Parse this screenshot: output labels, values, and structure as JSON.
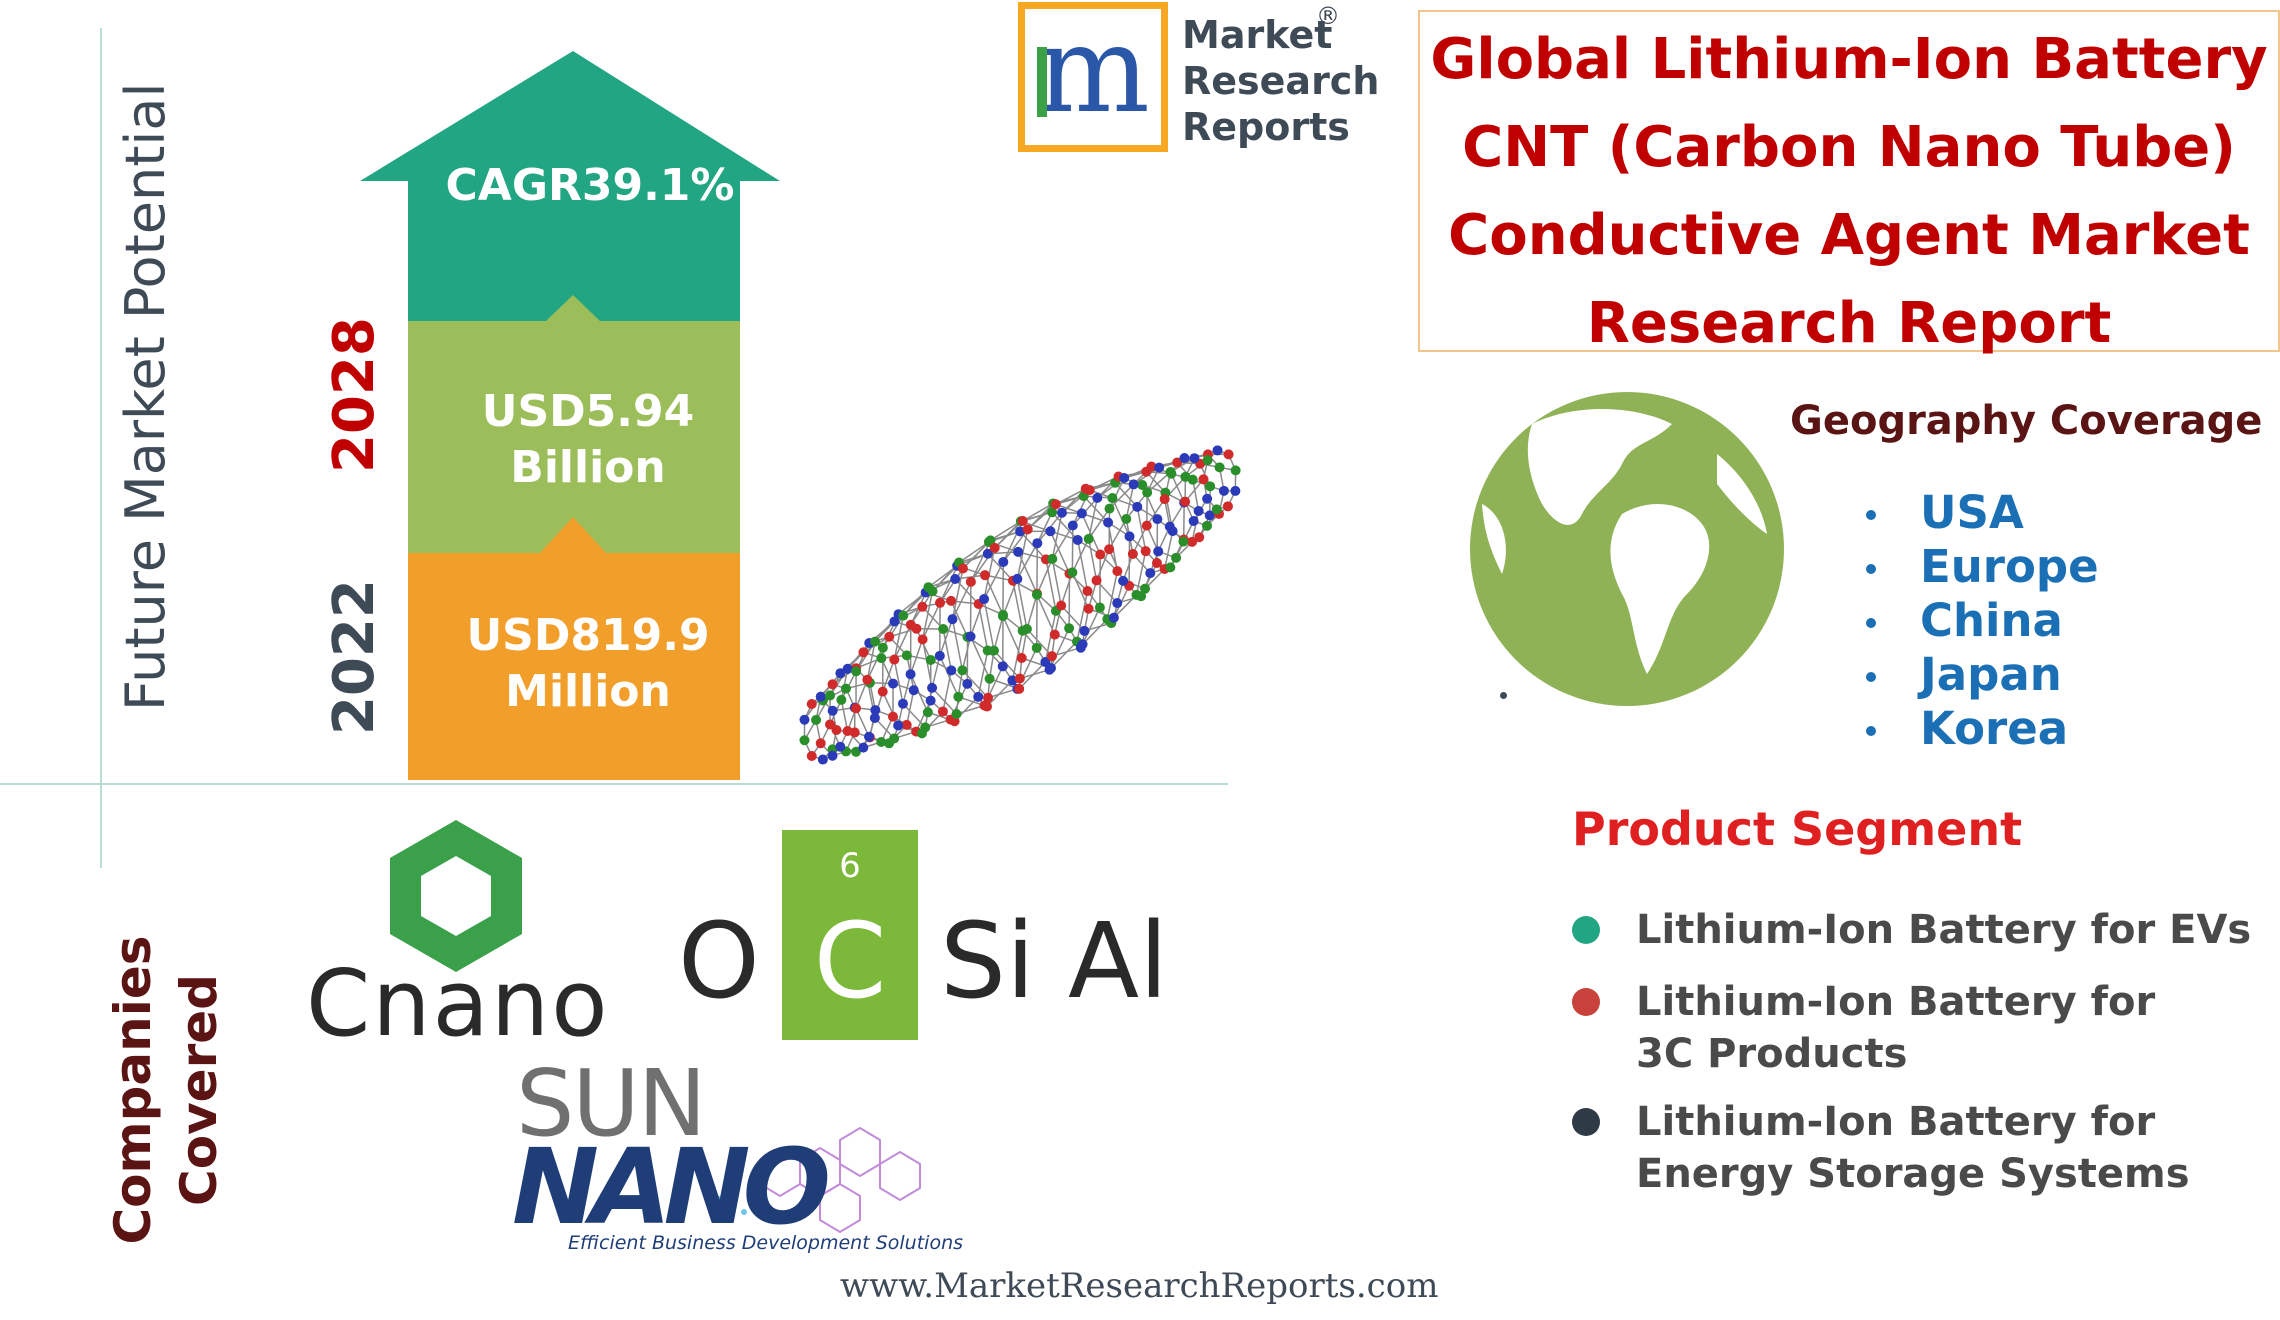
{
  "title": {
    "lines": [
      "Global Lithium-Ion Battery",
      "CNT (Carbon Nano Tube)",
      "Conductive Agent  Market",
      "Research Report"
    ],
    "color": "#c00000"
  },
  "logo": {
    "letter": "m",
    "lines": [
      "Market",
      "Research",
      "Reports"
    ],
    "registered": "®"
  },
  "left_labels": {
    "potential": "Future Market Potential",
    "companies_line1": "Companies",
    "companies_line2": "Covered"
  },
  "growth": {
    "year_2028": "2028",
    "year_2022": "2022",
    "cagr_label": "CAGR",
    "cagr_value": "39.1%",
    "value_2028_line1": "USD5.94",
    "value_2028_line2": "Billion",
    "value_2022_line1": "USD819.9",
    "value_2022_line2": "Million",
    "colors": {
      "arrow": "#22a583",
      "middle": "#9cbe5a",
      "bottom": "#f29e2a"
    }
  },
  "companies": {
    "cnano": "Cnano",
    "ocsial": {
      "o": "O",
      "c": "C",
      "c_number": "6",
      "rest": "Si Al"
    },
    "sunnano": {
      "sun": "SUN",
      "nano": "NANO",
      "tagline": "Efficient Business Development Solutions"
    }
  },
  "geography": {
    "heading": "Geography Coverage",
    "regions": [
      "USA",
      "Europe",
      "China",
      "Japan",
      "Korea"
    ],
    "globe_icon": "globe-icon",
    "globe_color": "#8fb256"
  },
  "product_segment": {
    "heading": "Product Segment",
    "items": [
      {
        "lines": [
          "Lithium-Ion Battery for EVs"
        ],
        "color": "#22a583"
      },
      {
        "lines": [
          "Lithium-Ion Battery for",
          "3C Products"
        ],
        "color": "#c8413a"
      },
      {
        "lines": [
          "Lithium-Ion Battery for",
          "Energy Storage Systems"
        ],
        "color": "#2e3a45"
      }
    ]
  },
  "footer": {
    "url": "www.MarketResearchReports.com"
  }
}
